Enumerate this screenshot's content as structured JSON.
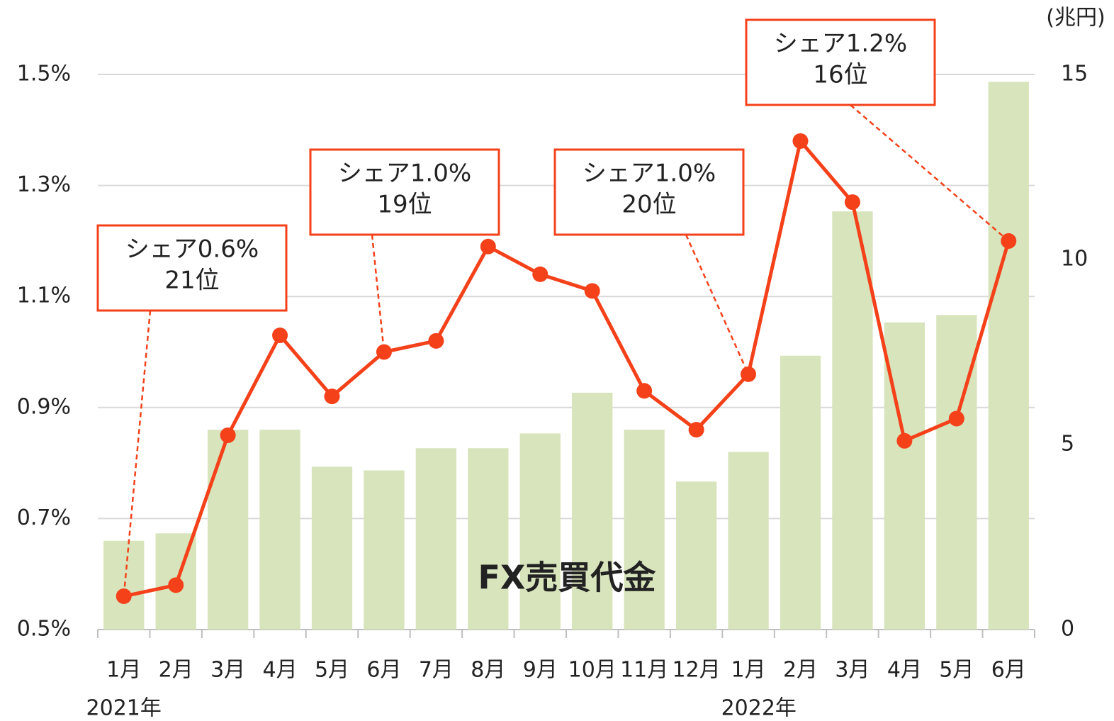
{
  "chart_data": {
    "type": "bar-line",
    "categories": [
      "1月",
      "2月",
      "3月",
      "4月",
      "5月",
      "6月",
      "7月",
      "8月",
      "9月",
      "10月",
      "11月",
      "12月",
      "1月",
      "2月",
      "3月",
      "4月",
      "5月",
      "6月"
    ],
    "x_groups": [
      "2021年",
      "2022年"
    ],
    "series": [
      {
        "name": "FX売買代金",
        "type": "bar",
        "axis": "y2",
        "color": "#d8e4bc",
        "values": [
          2.4,
          2.6,
          5.4,
          5.4,
          4.4,
          4.3,
          4.9,
          4.9,
          5.3,
          6.4,
          5.4,
          4.0,
          4.8,
          7.4,
          11.3,
          8.3,
          8.5,
          14.8
        ]
      },
      {
        "type": "line",
        "axis": "y",
        "color": "#f4411a",
        "values": [
          0.56,
          0.58,
          0.85,
          1.03,
          0.92,
          1.0,
          1.02,
          1.19,
          1.14,
          1.11,
          0.93,
          0.86,
          0.96,
          1.38,
          1.27,
          0.84,
          0.88,
          1.2
        ]
      }
    ],
    "ylim": [
      0.5,
      1.5
    ],
    "yticks": [
      {
        "value": 0.5,
        "label": "0.5%"
      },
      {
        "value": 0.7,
        "label": "0.7%"
      },
      {
        "value": 0.9,
        "label": "0.9%"
      },
      {
        "value": 1.1,
        "label": "1.1%"
      },
      {
        "value": 1.3,
        "label": "1.3%"
      },
      {
        "value": 1.5,
        "label": "1.5%"
      }
    ],
    "y2lim": [
      0,
      15
    ],
    "y2ticks": [
      0,
      5,
      10,
      15
    ],
    "y2_label": "(兆円)",
    "grid": true,
    "annotations": [
      {
        "lines": [
          "シェア0.6%",
          "21位"
        ]
      },
      {
        "lines": [
          "シェア1.0%",
          "19位"
        ]
      },
      {
        "lines": [
          "シェア1.0%",
          "20位"
        ]
      },
      {
        "lines": [
          "シェア1.2%",
          "16位"
        ]
      }
    ]
  }
}
